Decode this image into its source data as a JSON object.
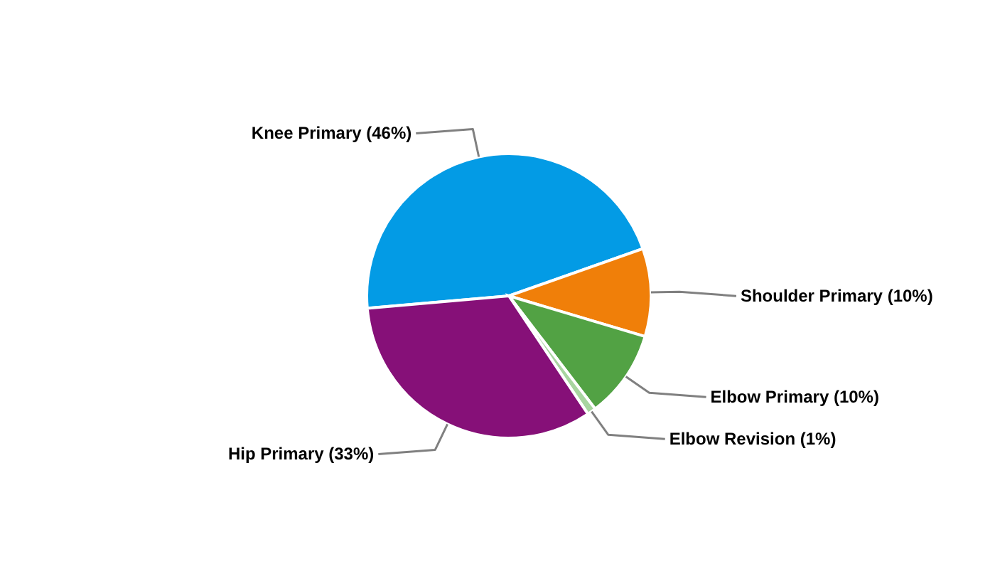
{
  "chart_data": {
    "type": "pie",
    "categories": [
      "Knee Primary (46%)",
      "Shoulder Primary (10%)",
      "Elbow Primary (10%)",
      "Elbow Revision (1%)",
      "Hip Primary (33%)"
    ],
    "values": [
      46,
      10,
      10,
      1,
      33
    ],
    "colors": [
      "#039be5",
      "#f07f09",
      "#52a244",
      "#a8d5a0",
      "#861078"
    ],
    "legend": false
  }
}
